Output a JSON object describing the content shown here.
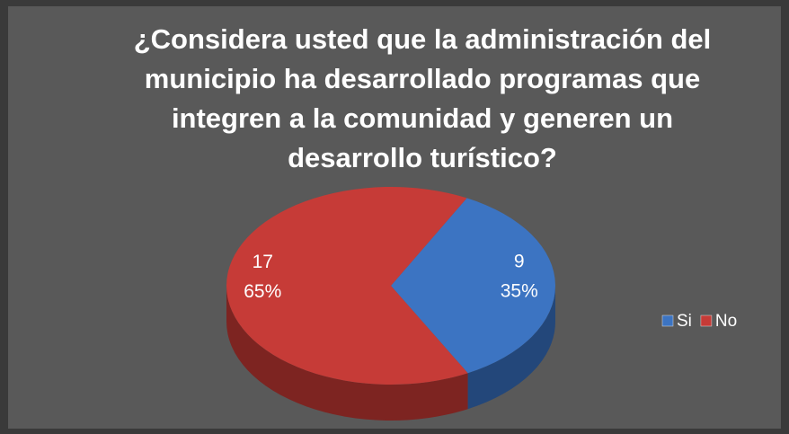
{
  "chart_data": {
    "type": "pie",
    "title": [
      "¿Considera usted que la administración del",
      "municipio ha desarrollado programas que",
      "integren a la comunidad y generen un",
      "desarrollo turístico?"
    ],
    "categories": [
      "Si",
      "No"
    ],
    "values": [
      9,
      17
    ],
    "percents": [
      35,
      65
    ],
    "percent_labels": [
      "35%",
      "65%"
    ],
    "colors": [
      "#3c74c2",
      "#c63b37"
    ],
    "side_colors": [
      "#23477a",
      "#7d2421"
    ],
    "legend": "right"
  }
}
